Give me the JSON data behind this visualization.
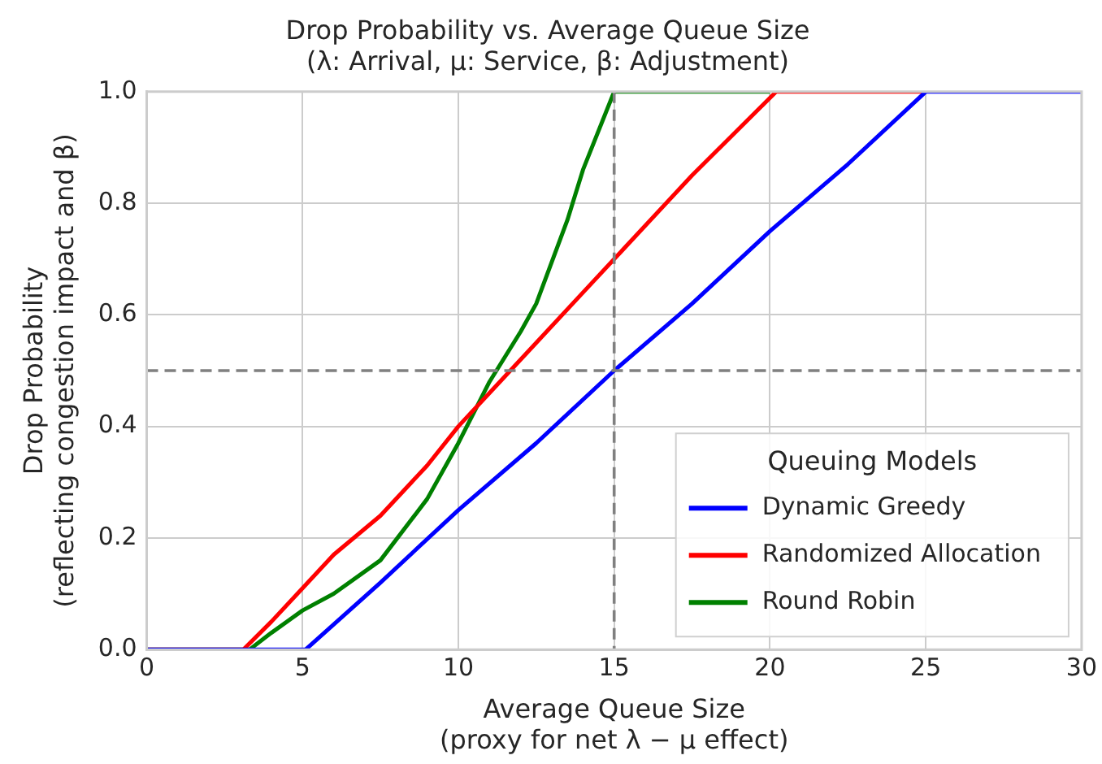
{
  "chart_data": {
    "type": "line",
    "title": "Drop Probability vs. Average Queue Size",
    "subtitle": "(λ: Arrival, μ: Service, β: Adjustment)",
    "xlabel": "Average Queue Size\n(proxy for net λ − μ effect)",
    "ylabel": "Drop Probability\n(reflecting congestion impact and β)",
    "legend_title": "Queuing Models",
    "legend": "bottom right",
    "grid": true,
    "line_style": "solid",
    "xlim": [
      0,
      30
    ],
    "ylim": [
      0,
      1
    ],
    "xticks": [
      0,
      5,
      10,
      15,
      20,
      25,
      30
    ],
    "yticks": [
      {
        "value": 0,
        "label": "0.0"
      },
      {
        "value": 0.2,
        "label": "0.2"
      },
      {
        "value": 0.4,
        "label": "0.4"
      },
      {
        "value": 0.6,
        "label": "0.6"
      },
      {
        "value": 0.8,
        "label": "0.8"
      },
      {
        "value": 1,
        "label": "1.0"
      }
    ],
    "series": [
      {
        "name": "Dynamic Greedy",
        "color": "#0000ff",
        "x": [
          0,
          5.1,
          7.5,
          10,
          12.5,
          15,
          17.5,
          20,
          22.5,
          25,
          27.5,
          30
        ],
        "values": [
          0,
          0,
          0.12,
          0.25,
          0.37,
          0.5,
          0.62,
          0.75,
          0.87,
          1,
          1,
          1
        ]
      },
      {
        "name": "Randomized Allocation",
        "color": "#ff0000",
        "x": [
          0,
          3.1,
          4,
          5,
          6,
          7.5,
          9,
          10,
          11,
          12.5,
          14,
          15,
          17.5,
          20.2,
          25
        ],
        "values": [
          0,
          0,
          0.05,
          0.11,
          0.17,
          0.24,
          0.33,
          0.4,
          0.46,
          0.55,
          0.64,
          0.7,
          0.85,
          1,
          1
        ]
      },
      {
        "name": "Round Robin",
        "color": "#008000",
        "x": [
          0,
          3.3,
          4,
          5,
          6,
          7.5,
          9,
          10,
          11,
          12,
          12.5,
          13.5,
          14,
          15,
          20
        ],
        "values": [
          0,
          0,
          0.03,
          0.07,
          0.1,
          0.16,
          0.27,
          0.37,
          0.48,
          0.57,
          0.62,
          0.77,
          0.86,
          1,
          1
        ]
      }
    ],
    "ref_lines": [
      {
        "axis": "y",
        "value": 0.5,
        "color": "#808080",
        "line_style": "dashed"
      },
      {
        "axis": "x",
        "value": 15,
        "color": "#808080",
        "line_style": "dashed"
      }
    ]
  }
}
